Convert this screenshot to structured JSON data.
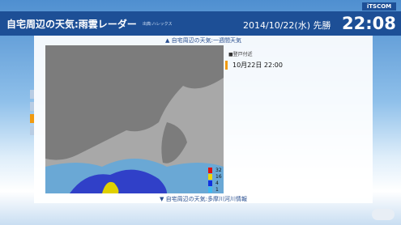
{
  "header": {
    "badge": "iTSCOM",
    "title": "自宅周辺の天気:雨雲レーダー",
    "source": "出典:ハレックス",
    "datetime": "2014/10/22(水) 先勝",
    "clock": "22:08"
  },
  "nav": {
    "up": "▲ 自宅周辺の天気:一週間天気",
    "down": "▼ 自宅周辺の天気:多摩川河川情報"
  },
  "panel": {
    "location": "■登戸付近",
    "timestamp": "10月22日 22:00"
  },
  "legend": [
    {
      "label": "32",
      "color": "#e01010"
    },
    {
      "label": "16",
      "color": "#f0d800"
    },
    {
      "label": "4",
      "color": "#1030e0"
    },
    {
      "label": "1",
      "color": "#40b8f0"
    }
  ]
}
